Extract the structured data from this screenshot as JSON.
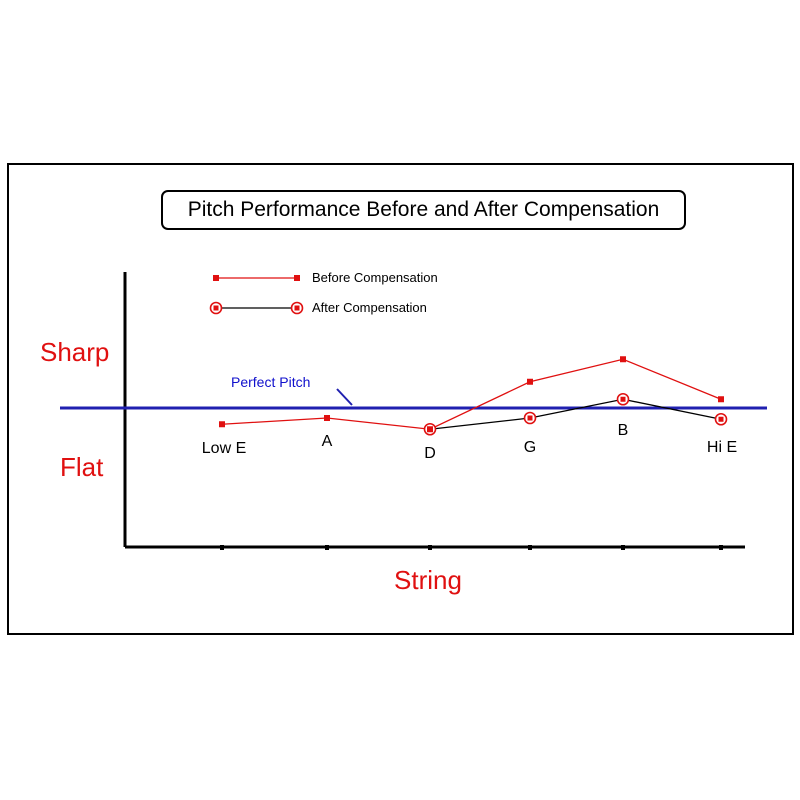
{
  "chart_data": {
    "type": "line",
    "title": "Pitch Performance Before and After Compensation",
    "xlabel": "String",
    "y_top_label": "Sharp",
    "y_bottom_label": "Flat",
    "categories": [
      "Low E",
      "A",
      "D",
      "G",
      "B",
      "Hi E"
    ],
    "reference_line": {
      "label": "Perfect Pitch",
      "value": 0,
      "color": "#2020b0"
    },
    "ylim": [
      -5.5,
      2.0
    ],
    "series": [
      {
        "name": "Before Compensation",
        "color": "#e01010",
        "marker": "square",
        "values": [
          -0.65,
          -0.4,
          -0.85,
          1.05,
          1.95,
          0.35
        ]
      },
      {
        "name": "After Compensation",
        "color": "#000000",
        "marker_color": "#e01010",
        "marker": "ring",
        "values": [
          null,
          null,
          -0.85,
          -0.4,
          0.35,
          -0.45
        ]
      }
    ],
    "legend_position": "top-left"
  }
}
